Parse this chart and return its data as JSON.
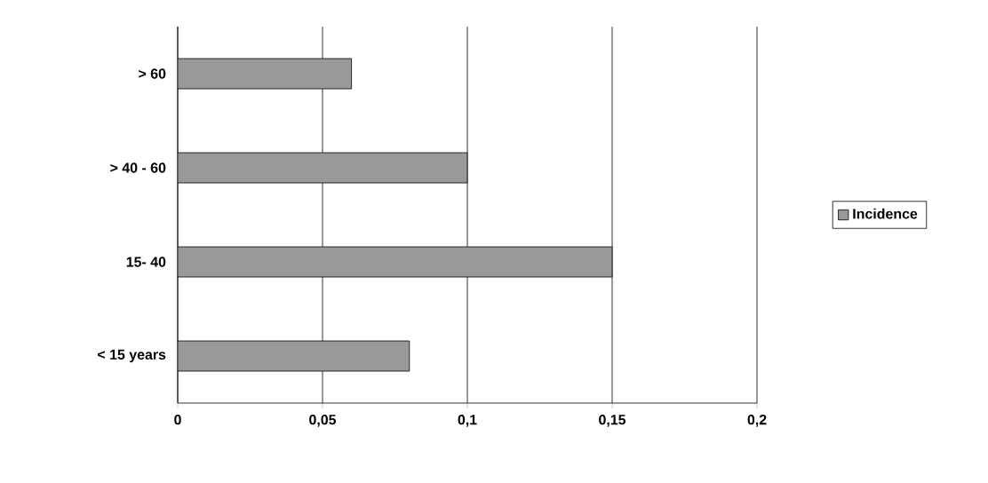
{
  "chart_data": {
    "type": "bar",
    "orientation": "horizontal",
    "categories": [
      "> 60",
      "> 40 - 60",
      "15- 40",
      "< 15 years"
    ],
    "series": [
      {
        "name": "Incidence",
        "color": "#999999",
        "values": [
          0.06,
          0.1,
          0.15,
          0.08
        ]
      }
    ],
    "xlim": [
      0,
      0.2
    ],
    "xticks": [
      0,
      {
        "value": 0.05,
        "label": "0,05"
      },
      {
        "value": 0.1,
        "label": "0,1"
      },
      {
        "value": 0.15,
        "label": "0,15"
      },
      {
        "value": 0.2,
        "label": "0,2"
      }
    ],
    "grid": "x",
    "legend": "right"
  }
}
